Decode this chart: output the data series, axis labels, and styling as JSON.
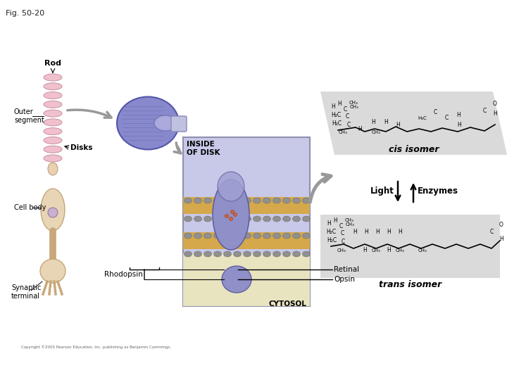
{
  "title": "Fig. 50-20",
  "background_color": "#ffffff",
  "labels": {
    "rod": "Rod",
    "outer_segment": "Outer\nsegment",
    "disks": "Disks",
    "inside_of_disk": "INSIDE\nOF DISK",
    "cytosol": "CYTOSOL",
    "cell_body": "Cell body",
    "synaptic_terminal": "Synaptic\nterminal",
    "rhodopsin": "Rhodopsin",
    "retinal": "Retinal",
    "opsin": "Opsin",
    "cis_isomer": "cis isomer",
    "light": "Light",
    "enzymes": "Enzymes",
    "trans_isomer": "trans isomer"
  },
  "colors": {
    "rod_segment_fill": "#f0c0cc",
    "rod_segment_edge": "#c890a0",
    "neck_fill": "#e8d0b0",
    "neck_edge": "#c0a080",
    "cell_body_fill": "#e8d5b5",
    "cell_body_edge": "#c0a070",
    "axon_color": "#c8a878",
    "disk_fill": "#8888cc",
    "disk_edge": "#5555aa",
    "disk_notch_fill": "#aaaadd",
    "panel_fill": "#c8c8e8",
    "panel_edge": "#9090b0",
    "membrane_gold": "#d4a84b",
    "membrane_gray": "#a0a0a0",
    "protein_fill": "#9090c8",
    "protein_edge": "#6060a0",
    "retinal_dot": "#cc6644",
    "cis_bg": "#d4d4d4",
    "trans_bg": "#d4d4d4",
    "arrow_gray": "#999999",
    "copyright": "#666666"
  },
  "copyright": "Copyright ©2005 Pearson Education, Inc. publishing as Benjamin Cummings."
}
